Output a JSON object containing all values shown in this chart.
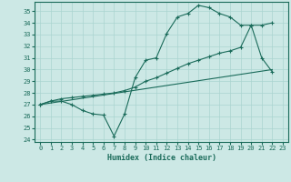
{
  "xlabel": "Humidex (Indice chaleur)",
  "ylabel": "",
  "bg_color": "#cce8e5",
  "line_color": "#1a6b5a",
  "grid_color": "#aad4d0",
  "xlim": [
    -0.5,
    23.5
  ],
  "ylim": [
    23.8,
    35.8
  ],
  "yticks": [
    24,
    25,
    26,
    27,
    28,
    29,
    30,
    31,
    32,
    33,
    34,
    35
  ],
  "xticks": [
    0,
    1,
    2,
    3,
    4,
    5,
    6,
    7,
    8,
    9,
    10,
    11,
    12,
    13,
    14,
    15,
    16,
    17,
    18,
    19,
    20,
    21,
    22,
    23
  ],
  "line1_x": [
    0,
    1,
    2,
    3,
    4,
    5,
    6,
    7,
    8,
    9,
    10,
    11,
    12,
    13,
    14,
    15,
    16,
    17,
    18,
    19,
    20,
    21,
    22
  ],
  "line1_y": [
    27.0,
    27.3,
    27.3,
    27.0,
    26.5,
    26.2,
    26.1,
    24.3,
    26.2,
    29.3,
    30.8,
    31.0,
    33.1,
    34.5,
    34.8,
    35.5,
    35.3,
    34.8,
    34.5,
    33.8,
    33.8,
    31.0,
    29.8
  ],
  "line2_x": [
    0,
    1,
    2,
    3,
    4,
    5,
    6,
    7,
    8,
    9,
    10,
    11,
    12,
    13,
    14,
    15,
    16,
    17,
    18,
    19,
    20,
    21,
    22
  ],
  "line2_y": [
    27.0,
    27.3,
    27.5,
    27.6,
    27.7,
    27.8,
    27.9,
    28.0,
    28.2,
    28.5,
    29.0,
    29.3,
    29.7,
    30.1,
    30.5,
    30.8,
    31.1,
    31.4,
    31.6,
    31.9,
    33.8,
    33.8,
    34.0
  ],
  "line3_x": [
    0,
    22
  ],
  "line3_y": [
    27.0,
    30.0
  ]
}
